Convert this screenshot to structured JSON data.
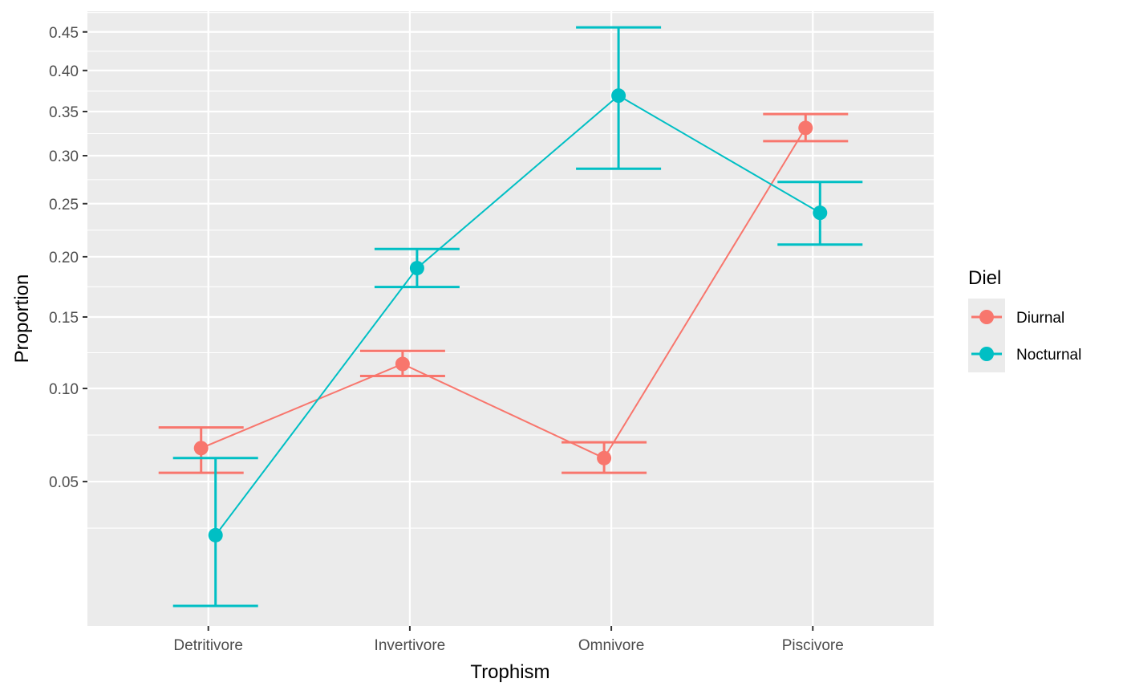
{
  "chart_data": {
    "type": "line",
    "title": "",
    "xlabel": "Trophism",
    "ylabel": "Proportion",
    "y_scale": "sqrt",
    "ylim": [
      0.0064,
      0.478
    ],
    "yticks": [
      "0.05",
      "0.10",
      "0.15",
      "0.20",
      "0.25",
      "0.30",
      "0.35",
      "0.40",
      "0.45"
    ],
    "categories": [
      "Detritivore",
      "Invertivore",
      "Omnivore",
      "Piscivore"
    ],
    "legend": {
      "title": "Diel",
      "position": "right"
    },
    "grid": true,
    "error_bars": true,
    "series": [
      {
        "name": "Diurnal",
        "color": "#F8766D",
        "values": [
          0.066,
          0.116,
          0.061,
          0.331
        ],
        "lower": [
          0.054,
          0.108,
          0.054,
          0.316
        ],
        "upper": [
          0.077,
          0.125,
          0.069,
          0.347
        ]
      },
      {
        "name": "Nocturnal",
        "color": "#00BFC4",
        "values": [
          0.029,
          0.19,
          0.369,
          0.241
        ],
        "lower": [
          0.01,
          0.174,
          0.286,
          0.211
        ],
        "upper": [
          0.061,
          0.207,
          0.456,
          0.272
        ]
      }
    ]
  }
}
